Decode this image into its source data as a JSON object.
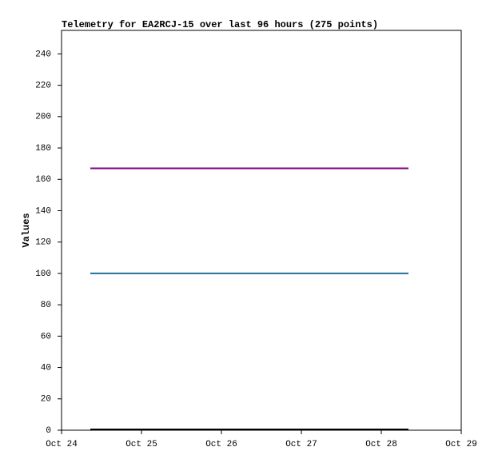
{
  "chart_data": {
    "type": "line",
    "title": "Telemetry for EA2RCJ-15 over last 96 hours (275 points)",
    "y_label": "Values",
    "x": [
      0.36,
      4.34
    ],
    "xlim": [
      0,
      5
    ],
    "xticks": [
      {
        "value": 0,
        "label": "Oct 24"
      },
      {
        "value": 1,
        "label": "Oct 25"
      },
      {
        "value": 2,
        "label": "Oct 26"
      },
      {
        "value": 3,
        "label": "Oct 27"
      },
      {
        "value": 4,
        "label": "Oct 28"
      },
      {
        "value": 5,
        "label": "Oct 29"
      }
    ],
    "ylim": [
      0,
      255
    ],
    "yticks": [
      0,
      20,
      40,
      60,
      80,
      100,
      120,
      140,
      160,
      180,
      200,
      220,
      240
    ],
    "series": [
      {
        "color": "#800080",
        "values": [
          167,
          167
        ]
      },
      {
        "color": "#1f6f9a",
        "values": [
          100,
          100
        ]
      },
      {
        "color": "#000000",
        "values": [
          0.5,
          0.5
        ]
      }
    ]
  }
}
